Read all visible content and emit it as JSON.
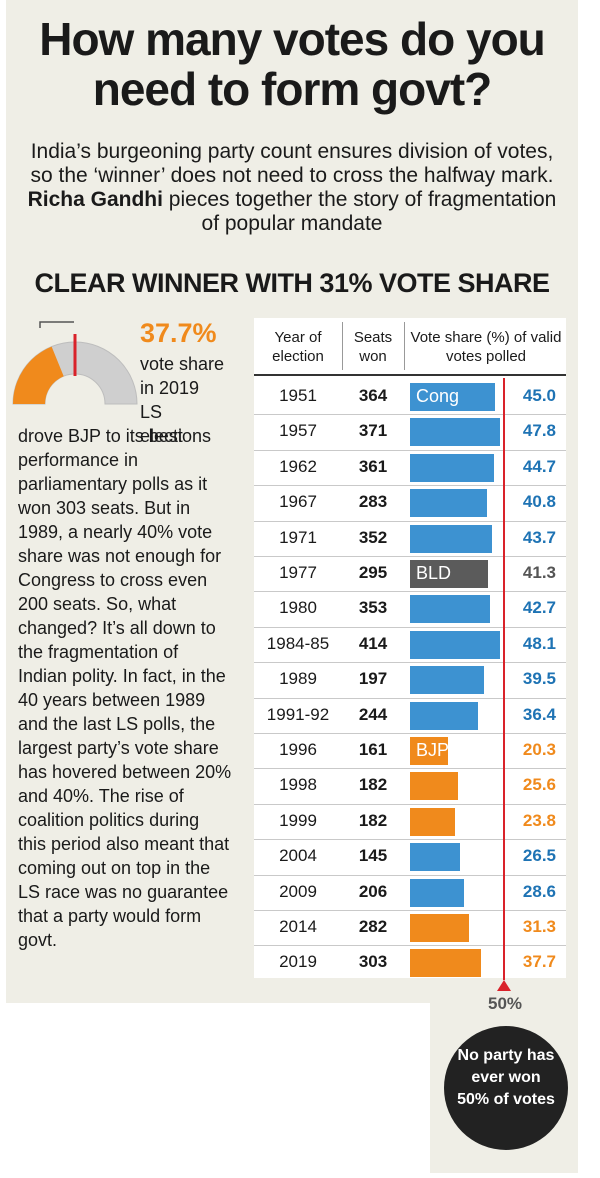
{
  "headline": "How many votes do you need to form govt?",
  "intro_before": "India’s burgeoning party count ensures division of votes, so the ‘winner’ does not need to cross the halfway mark. ",
  "author": "Richa Gandhi",
  "intro_after": " pieces together the story of fragmentation of popular mandate",
  "subhead": "CLEAR WINNER WITH 31% VOTE SHARE",
  "side": {
    "pct": "37.7%",
    "lead": "vote share in 2019 LS elections",
    "body": "drove BJP to its best performance in parliamentary polls as it won 303 seats. But in 1989, a nearly 40% vote share was not enough for Congress to cross even 200 seats. So, what changed? It’s all down to the fragmentation of Indian polity. In fact, in the 40 years between 1989 and the last LS polls, the largest party’s vote share has hovered between 20% and 40%. The rise of coalition politics during this period also meant that coming out on top in the LS race was no guarantee that a party would form govt.",
    "gauge_share": 0.377
  },
  "colors": {
    "cong": "#3d92d1",
    "bjp": "#f08a1c",
    "bld": "#5b5b5b",
    "red": "#d9222a",
    "orange_text": "#f08a1c",
    "blue_text": "#1e73b4",
    "grey_text": "#555555"
  },
  "chart_data": {
    "type": "table",
    "columns": [
      "Year of election",
      "Seats won",
      "Vote share (%) of valid votes polled"
    ],
    "reference_line": {
      "value": 50,
      "label": "50%"
    },
    "xlim": [
      0,
      50
    ],
    "rows": [
      {
        "year": "1951",
        "seats": "364",
        "share": "45.0",
        "value": 45.0,
        "party": "cong",
        "label": "Cong"
      },
      {
        "year": "1957",
        "seats": "371",
        "share": "47.8",
        "value": 47.8,
        "party": "cong",
        "label": ""
      },
      {
        "year": "1962",
        "seats": "361",
        "share": "44.7",
        "value": 44.7,
        "party": "cong",
        "label": ""
      },
      {
        "year": "1967",
        "seats": "283",
        "share": "40.8",
        "value": 40.8,
        "party": "cong",
        "label": ""
      },
      {
        "year": "1971",
        "seats": "352",
        "share": "43.7",
        "value": 43.7,
        "party": "cong",
        "label": ""
      },
      {
        "year": "1977",
        "seats": "295",
        "share": "41.3",
        "value": 41.3,
        "party": "bld",
        "label": "BLD"
      },
      {
        "year": "1980",
        "seats": "353",
        "share": "42.7",
        "value": 42.7,
        "party": "cong",
        "label": ""
      },
      {
        "year": "1984-85",
        "seats": "414",
        "share": "48.1",
        "value": 48.1,
        "party": "cong",
        "label": ""
      },
      {
        "year": "1989",
        "seats": "197",
        "share": "39.5",
        "value": 39.5,
        "party": "cong",
        "label": ""
      },
      {
        "year": "1991-92",
        "seats": "244",
        "share": "36.4",
        "value": 36.4,
        "party": "cong",
        "label": ""
      },
      {
        "year": "1996",
        "seats": "161",
        "share": "20.3",
        "value": 20.3,
        "party": "bjp",
        "label": "BJP"
      },
      {
        "year": "1998",
        "seats": "182",
        "share": "25.6",
        "value": 25.6,
        "party": "bjp",
        "label": ""
      },
      {
        "year": "1999",
        "seats": "182",
        "share": "23.8",
        "value": 23.8,
        "party": "bjp",
        "label": ""
      },
      {
        "year": "2004",
        "seats": "145",
        "share": "26.5",
        "value": 26.5,
        "party": "cong",
        "label": ""
      },
      {
        "year": "2009",
        "seats": "206",
        "share": "28.6",
        "value": 28.6,
        "party": "cong",
        "label": ""
      },
      {
        "year": "2014",
        "seats": "282",
        "share": "31.3",
        "value": 31.3,
        "party": "bjp",
        "label": ""
      },
      {
        "year": "2019",
        "seats": "303",
        "share": "37.7",
        "value": 37.7,
        "party": "bjp",
        "label": ""
      }
    ]
  },
  "callout": "No party has ever won 50% of votes"
}
